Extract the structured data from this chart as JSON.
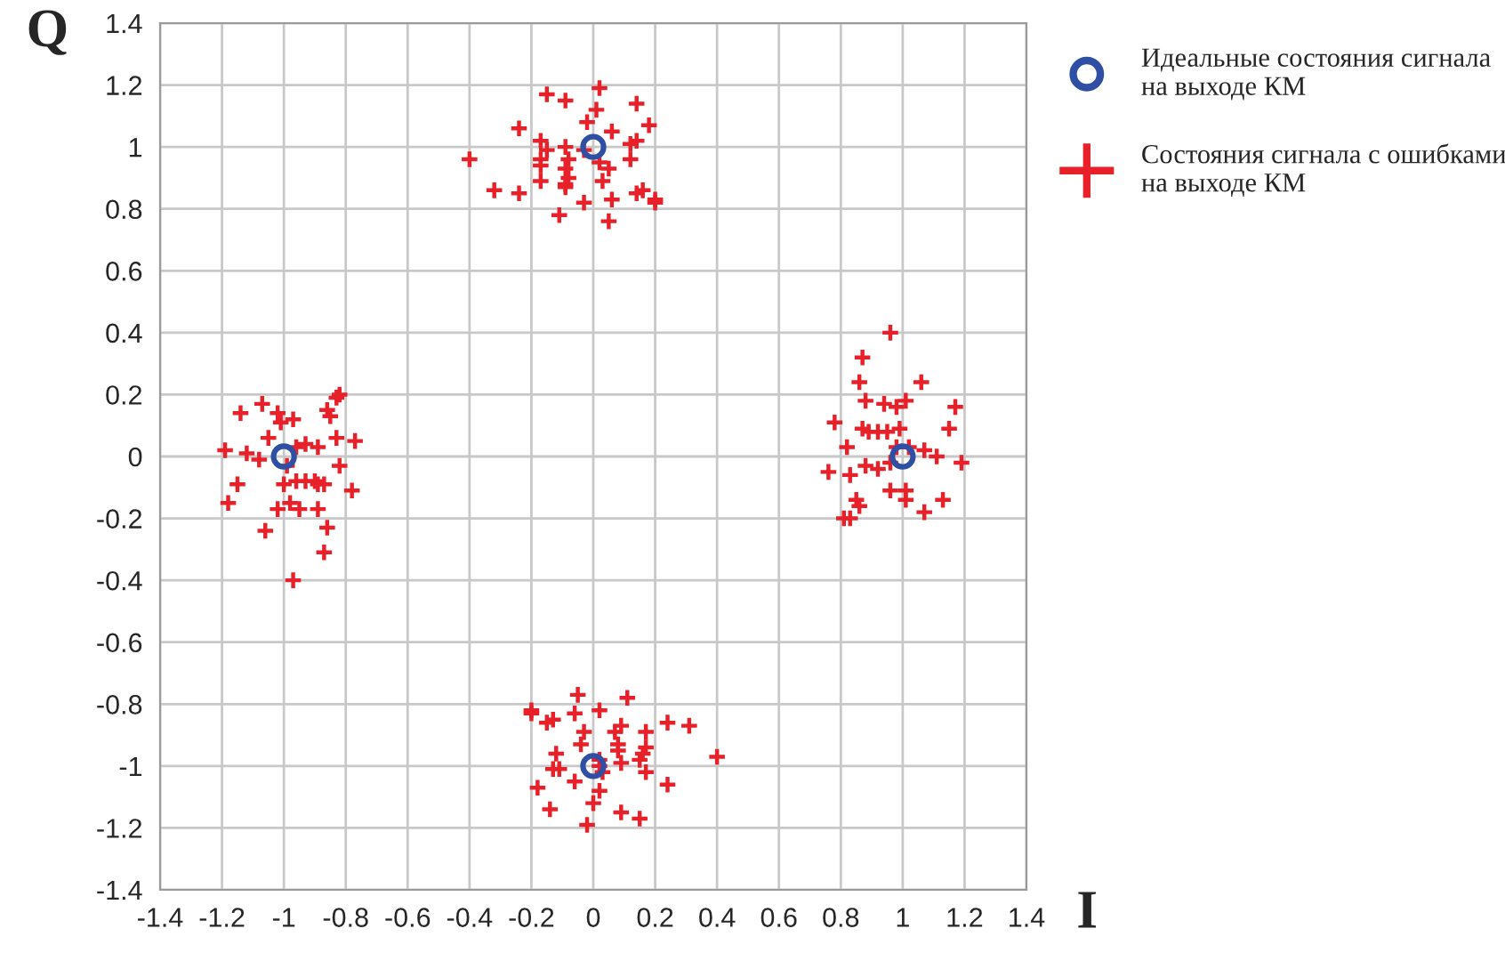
{
  "chart_data": {
    "type": "scatter",
    "xlabel": "I",
    "ylabel": "Q",
    "xlim": [
      -1.4,
      1.4
    ],
    "ylim": [
      -1.4,
      1.4
    ],
    "xticks": [
      -1.4,
      -1.2,
      -1,
      -0.8,
      -0.6,
      -0.4,
      -0.2,
      0,
      0.2,
      0.4,
      0.6,
      0.8,
      1,
      1.2,
      1.4
    ],
    "yticks": [
      -1.4,
      -1.2,
      -1,
      -0.8,
      -0.6,
      -0.4,
      -0.2,
      0,
      0.2,
      0.4,
      0.6,
      0.8,
      1,
      1.2,
      1.4
    ],
    "grid": true,
    "legend": "top right",
    "series": [
      {
        "name": "Идеальные состояния сигнала\nна выходе КМ",
        "color": "#2e4fa3",
        "marker": "circle",
        "x": [
          0,
          -1,
          1,
          0
        ],
        "values": [
          1,
          0,
          0,
          -1
        ]
      },
      {
        "name": "Состояния сигнала с ошибками\nна выходе КМ",
        "color": "#e8202a",
        "marker": "cross",
        "x": [
          0.02,
          -0.15,
          -0.09,
          0.14,
          0.01,
          -0.24,
          -0.02,
          0.06,
          0.18,
          -0.17,
          -0.09,
          -0.15,
          -0.03,
          0.12,
          0.14,
          -0.4,
          -0.17,
          -0.08,
          0.02,
          0.12,
          -0.17,
          -0.09,
          0.05,
          -0.08,
          -0.17,
          0.03,
          -0.09,
          -0.09,
          -0.32,
          -0.24,
          0.14,
          0.16,
          0.06,
          -0.03,
          0.2,
          0.2,
          -0.11,
          0.05,
          -0.82,
          -0.83,
          -1.14,
          -1.07,
          -1.02,
          -0.86,
          -0.85,
          -1.01,
          -0.97,
          -1.05,
          -0.77,
          -0.83,
          -0.93,
          -0.89,
          -0.96,
          -1.19,
          -1.12,
          -1.08,
          -0.99,
          -0.82,
          -1.15,
          -1.0,
          -0.96,
          -0.93,
          -0.9,
          -0.89,
          -0.87,
          -0.78,
          -1.18,
          -1.02,
          -0.98,
          -0.95,
          -0.89,
          -1.06,
          -0.86,
          -0.87,
          -0.97,
          0.96,
          0.87,
          0.86,
          1.06,
          0.88,
          0.94,
          0.98,
          1.01,
          1.17,
          0.78,
          0.87,
          0.89,
          0.92,
          0.95,
          0.99,
          1.15,
          0.82,
          0.98,
          1.02,
          1.07,
          1.11,
          1.19,
          0.76,
          0.83,
          0.88,
          0.92,
          0.96,
          0.96,
          1.01,
          1.01,
          1.13,
          0.85,
          0.86,
          1.07,
          0.81,
          0.83,
          -0.05,
          0.11,
          -0.2,
          -0.2,
          -0.15,
          -0.13,
          -0.06,
          0.02,
          0.24,
          0.31,
          -0.03,
          0.07,
          0.09,
          0.17,
          -0.04,
          0.08,
          0.08,
          0.17,
          0.16,
          -0.12,
          0.4,
          0.02,
          0.09,
          0.15,
          0.02,
          -0.13,
          -0.11,
          0.03,
          0.17,
          -0.06,
          0.24,
          -0.18,
          0.02,
          0.0,
          -0.14,
          0.09,
          0.15,
          -0.02
        ],
        "values": [
          1.19,
          1.17,
          1.15,
          1.14,
          1.12,
          1.06,
          1.08,
          1.05,
          1.07,
          1.02,
          1.0,
          0.99,
          0.99,
          1.01,
          1.02,
          0.96,
          0.96,
          0.96,
          0.95,
          0.96,
          0.94,
          0.93,
          0.93,
          0.9,
          0.89,
          0.89,
          0.88,
          0.87,
          0.86,
          0.85,
          0.85,
          0.86,
          0.83,
          0.82,
          0.83,
          0.82,
          0.78,
          0.76,
          0.2,
          0.19,
          0.14,
          0.17,
          0.14,
          0.15,
          0.13,
          0.11,
          0.12,
          0.06,
          0.05,
          0.06,
          0.04,
          0.03,
          0.03,
          0.02,
          0.01,
          -0.01,
          -0.03,
          -0.03,
          -0.09,
          -0.09,
          -0.08,
          -0.08,
          -0.08,
          -0.09,
          -0.09,
          -0.11,
          -0.15,
          -0.17,
          -0.15,
          -0.17,
          -0.17,
          -0.24,
          -0.23,
          -0.31,
          -0.4,
          0.4,
          0.32,
          0.24,
          0.24,
          0.18,
          0.17,
          0.16,
          0.18,
          0.16,
          0.11,
          0.09,
          0.08,
          0.08,
          0.08,
          0.09,
          0.09,
          0.03,
          0.03,
          0.03,
          0.02,
          0.0,
          -0.02,
          -0.05,
          -0.06,
          -0.03,
          -0.04,
          -0.02,
          -0.11,
          -0.11,
          -0.14,
          -0.14,
          -0.14,
          -0.16,
          -0.18,
          -0.2,
          -0.2,
          -0.77,
          -0.78,
          -0.82,
          -0.83,
          -0.86,
          -0.85,
          -0.83,
          -0.82,
          -0.86,
          -0.87,
          -0.89,
          -0.89,
          -0.87,
          -0.89,
          -0.93,
          -0.93,
          -0.95,
          -0.94,
          -0.96,
          -0.96,
          -0.97,
          -0.98,
          -0.99,
          -0.98,
          -1.0,
          -1.01,
          -1.01,
          -1.02,
          -1.02,
          -1.05,
          -1.06,
          -1.07,
          -1.08,
          -1.12,
          -1.14,
          -1.15,
          -1.17,
          -1.19
        ]
      }
    ]
  }
}
